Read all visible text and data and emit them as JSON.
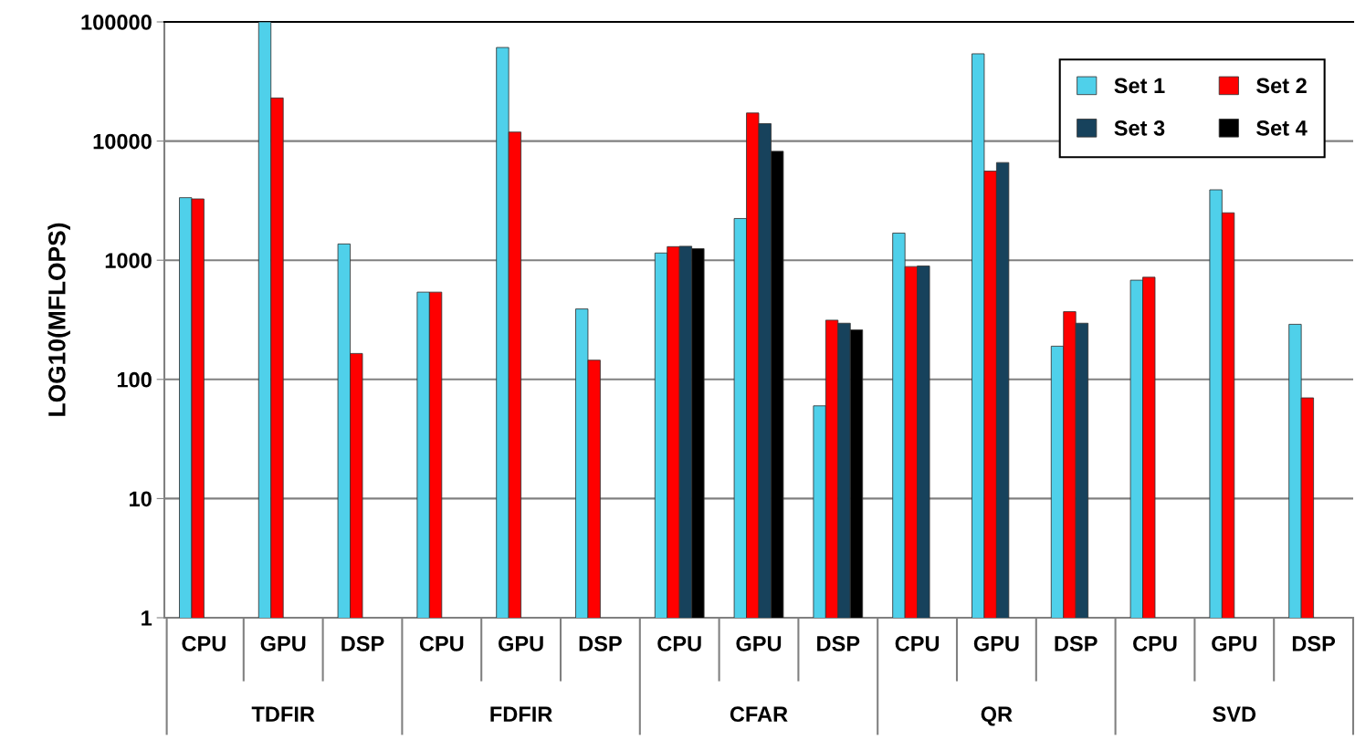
{
  "chart_data": {
    "type": "bar",
    "ylabel": "LOG10(MFLOPS)",
    "categories": [
      "CPU",
      "GPU",
      "DSP",
      "CPU",
      "GPU",
      "DSP",
      "CPU",
      "GPU",
      "DSP",
      "CPU",
      "GPU",
      "DSP",
      "CPU",
      "GPU",
      "DSP"
    ],
    "annotations": [
      "TDFIR",
      "FDFIR",
      "CFAR",
      "QR",
      "SVD"
    ],
    "series": [
      {
        "name": "Set 1",
        "color": "#4fd0ea",
        "values": [
          3350,
          100000,
          1370,
          540,
          61000,
          390,
          1150,
          2240,
          60,
          1690,
          54000,
          190,
          680,
          3900,
          290
        ]
      },
      {
        "name": "Set 2",
        "color": "#ff0000",
        "values": [
          3270,
          23000,
          165,
          540,
          11900,
          145,
          1300,
          17200,
          314,
          885,
          5600,
          370,
          720,
          2500,
          70
        ]
      },
      {
        "name": "Set 3",
        "color": "#17425c",
        "values": [
          null,
          null,
          null,
          null,
          null,
          null,
          1310,
          14000,
          296,
          895,
          6600,
          296,
          null,
          null,
          null
        ]
      },
      {
        "name": "Set 4",
        "color": "#000000",
        "values": [
          null,
          null,
          null,
          null,
          null,
          null,
          1250,
          8200,
          260,
          null,
          null,
          null,
          null,
          null,
          null
        ]
      }
    ],
    "log": "y",
    "ylim": [
      1,
      100000
    ],
    "yticks": [
      1,
      10,
      100,
      1000,
      10000,
      100000
    ],
    "grid": "y",
    "legend": "top right"
  }
}
